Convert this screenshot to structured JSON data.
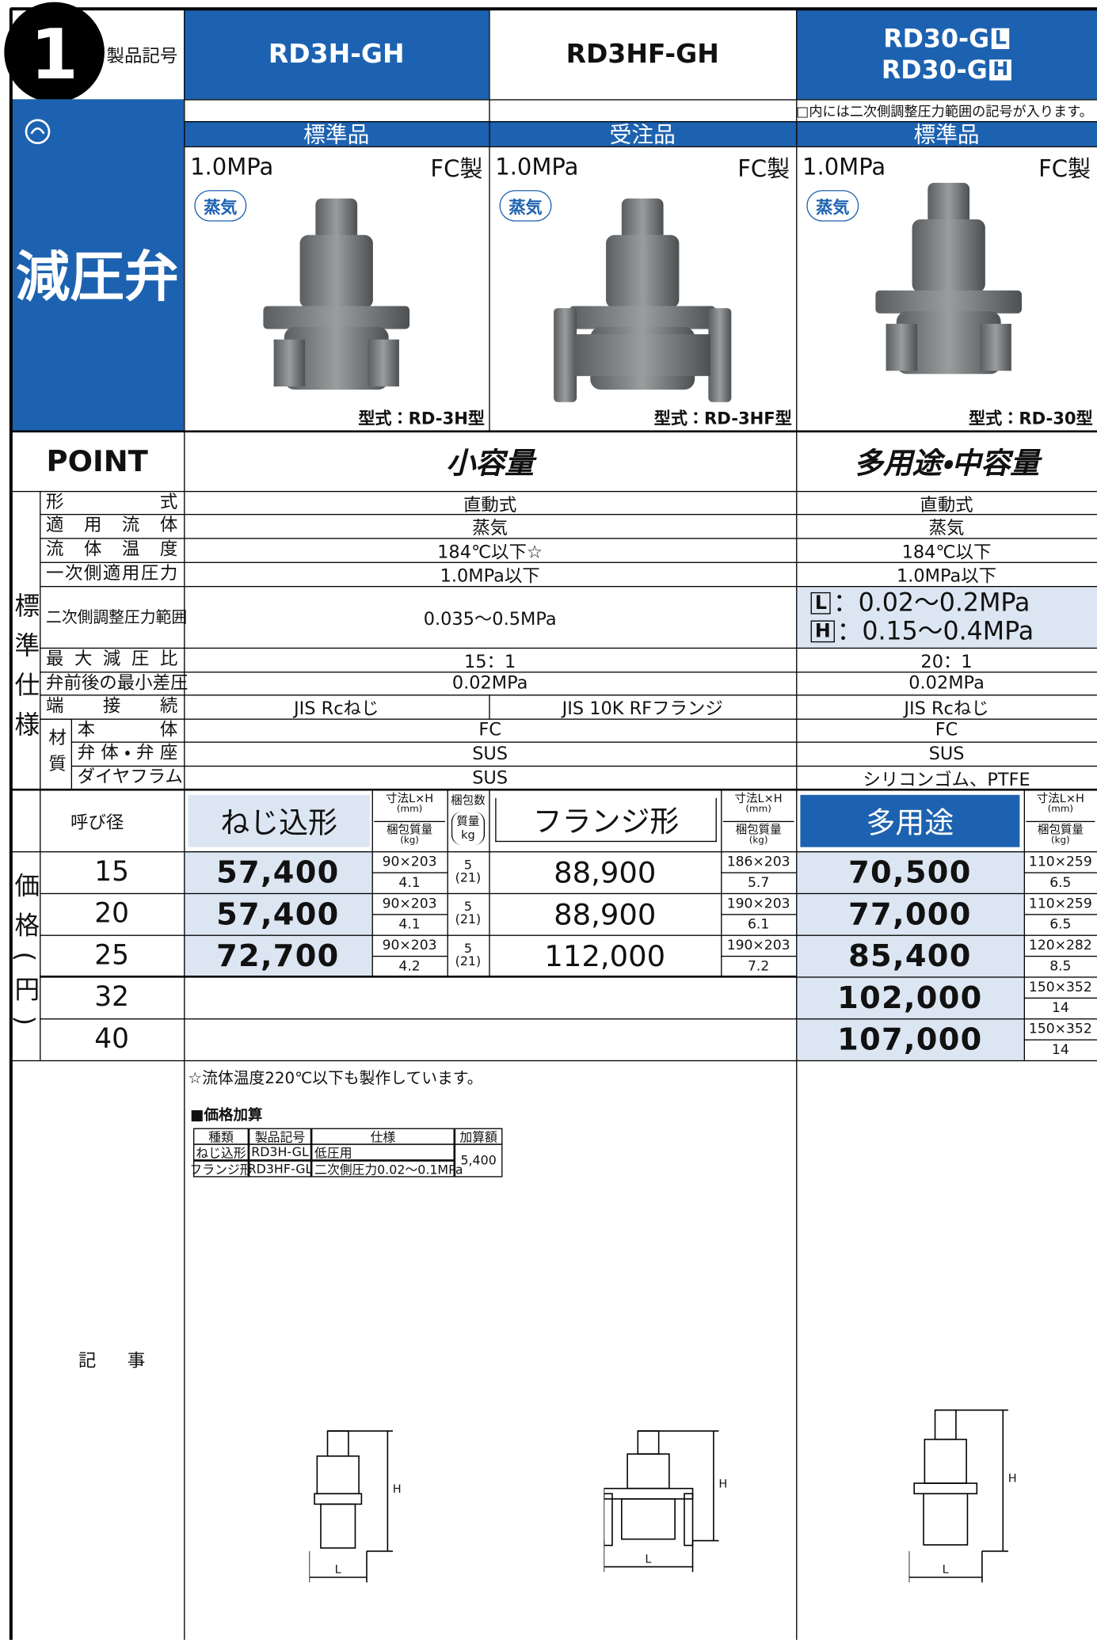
{
  "header": {
    "number": "1",
    "product_code_label": "製品記号",
    "category": "減圧弁",
    "point_label": "POINT"
  },
  "note": "□内には二次側調整圧力範囲の記号が入ります。",
  "products": [
    {
      "code": "RD3H-GH",
      "status": "標準品",
      "pressure": "1.0MPa",
      "material": "FC製",
      "medium": "蒸気",
      "model": "型式：RD-3H型"
    },
    {
      "code": "RD3HF-GH",
      "status": "受注品",
      "pressure": "1.0MPa",
      "material": "FC製",
      "medium": "蒸気",
      "model": "型式：RD-3HF型"
    },
    {
      "codes": [
        {
          "text": "RD30-G",
          "box": "L"
        },
        {
          "text": "RD30-G",
          "box": "H"
        }
      ],
      "status": "標準品",
      "pressure": "1.0MPa",
      "material": "FC製",
      "medium": "蒸気",
      "model": "型式：RD-30型"
    }
  ],
  "points": [
    "小容量",
    "多用途・中容量"
  ],
  "specs": {
    "group_label": "標準仕様",
    "material_label": "材質",
    "rows": [
      {
        "label": "形式",
        "cells": [
          "直動式",
          "直動式"
        ]
      },
      {
        "label": "適用流体",
        "cells": [
          "蒸気",
          "蒸気"
        ]
      },
      {
        "label": "流体温度",
        "cells": [
          "184℃以下☆",
          "184℃以下"
        ]
      },
      {
        "label": "一次側適用圧力",
        "cells": [
          "1.0MPa以下",
          "1.0MPa以下"
        ]
      },
      {
        "label": "二次側調整圧力範囲",
        "cells": [
          "0.035〜0.5MPa",
          [
            {
              "box": "L",
              "text": "：0.02〜0.2MPa"
            },
            {
              "box": "H",
              "text": "：0.15〜0.4MPa"
            }
          ]
        ]
      },
      {
        "label": "最大減圧比",
        "cells": [
          "15：1",
          "20：1"
        ]
      },
      {
        "label": "弁前後の最小差圧",
        "cells": [
          "0.02MPa",
          "0.02MPa"
        ]
      },
      {
        "label": "端接続",
        "cells": [
          "JIS Rcねじ",
          "JIS 10K RFフランジ",
          "JIS Rcねじ"
        ]
      }
    ],
    "material_rows": [
      {
        "label": "本体",
        "cells": [
          "FC",
          "FC"
        ]
      },
      {
        "label": "弁体・弁座",
        "cells": [
          "SUS",
          "SUS"
        ]
      },
      {
        "label": "ダイヤフラム",
        "cells": [
          "SUS",
          "シリコンゴム、PTFE"
        ]
      }
    ]
  },
  "prices": {
    "group_label": "価格(円)",
    "size_label": "呼び径",
    "types": [
      "ねじ込形",
      "フランジ形",
      "多用途"
    ],
    "dim_label": "寸法L×H",
    "dim_unit": "(mm)",
    "weight_label": "梱包質量",
    "weight_unit": "(kg)",
    "pack_label": "梱包数",
    "pack_weight_label": "質量",
    "pack_weight_unit": "kg",
    "rows": [
      {
        "size": "15",
        "screw": {
          "price": "57,400",
          "dim": "90×203",
          "weight": "4.1",
          "pack": "5",
          "pack_weight": "(21)"
        },
        "flange": {
          "price": "88,900",
          "dim": "186×203",
          "weight": "5.7"
        },
        "multi": {
          "price": "70,500",
          "dim": "110×259",
          "weight": "6.5"
        }
      },
      {
        "size": "20",
        "screw": {
          "price": "57,400",
          "dim": "90×203",
          "weight": "4.1",
          "pack": "5",
          "pack_weight": "(21)"
        },
        "flange": {
          "price": "88,900",
          "dim": "190×203",
          "weight": "6.1"
        },
        "multi": {
          "price": "77,000",
          "dim": "110×259",
          "weight": "6.5"
        }
      },
      {
        "size": "25",
        "screw": {
          "price": "72,700",
          "dim": "90×203",
          "weight": "4.2",
          "pack": "5",
          "pack_weight": "(21)"
        },
        "flange": {
          "price": "112,000",
          "dim": "190×203",
          "weight": "7.2"
        },
        "multi": {
          "price": "85,400",
          "dim": "120×282",
          "weight": "8.5"
        }
      },
      {
        "size": "32",
        "multi": {
          "price": "102,000",
          "dim": "150×352",
          "weight": "14"
        }
      },
      {
        "size": "40",
        "multi": {
          "price": "107,000",
          "dim": "150×352",
          "weight": "14"
        }
      }
    ]
  },
  "remarks": {
    "label": "記事",
    "footnote": "☆流体温度220℃以下も製作しています。",
    "surcharge_title": "■価格加算",
    "surcharge_table": {
      "headers": [
        "種類",
        "製品記号",
        "仕様",
        "加算額"
      ],
      "rows": [
        [
          "ねじ込形",
          "RD3H-GL",
          "低圧用"
        ],
        [
          "フランジ形",
          "RD3HF-GL",
          "二次側圧力0.02〜0.1MPa"
        ]
      ],
      "amount": "5,400"
    },
    "drawing_labels": {
      "height": "H",
      "length": "L"
    }
  }
}
